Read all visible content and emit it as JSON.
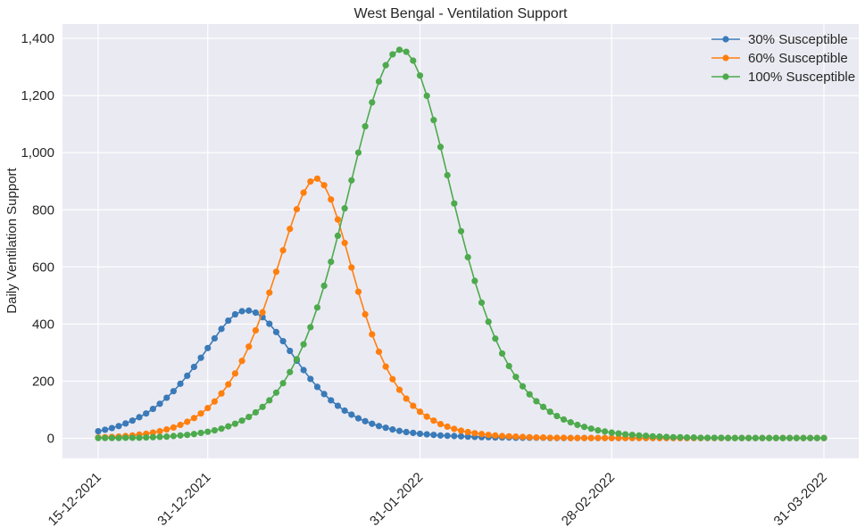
{
  "chart_data": {
    "type": "line",
    "title": "West Bengal - Ventilation Support",
    "xlabel": "",
    "ylabel": "Daily Ventilation Support",
    "x_start": "15-12-2021",
    "x_end": "31-03-2022",
    "x_step_days": 1,
    "xticks": [
      "15-12-2021",
      "31-12-2021",
      "31-01-2022",
      "28-02-2022",
      "31-03-2022"
    ],
    "yticks": [
      "0",
      "200",
      "400",
      "600",
      "800",
      "1,000",
      "1,200",
      "1,400"
    ],
    "ylim": [
      -70,
      1450
    ],
    "grid": true,
    "legend_position": "top-right",
    "series": [
      {
        "name": "30% Susceptible",
        "color": "#3a7ab8",
        "values": [
          25,
          30,
          36,
          43,
          52,
          62,
          74,
          87,
          103,
          121,
          142,
          165,
          191,
          219,
          250,
          282,
          316,
          350,
          383,
          412,
          434,
          445,
          447,
          440,
          424,
          401,
          372,
          340,
          306,
          272,
          239,
          208,
          180,
          155,
          133,
          114,
          97,
          83,
          70,
          60,
          51,
          43,
          37,
          31,
          26,
          22,
          19,
          16,
          14,
          12,
          10,
          9,
          8,
          7,
          6,
          5,
          4,
          4,
          3,
          3,
          3,
          2,
          2,
          2,
          2,
          2,
          1,
          1,
          1,
          1,
          1,
          1,
          1,
          1,
          1,
          1,
          1,
          1,
          1,
          1,
          1,
          1,
          1,
          1,
          1,
          1,
          1,
          1,
          1,
          1,
          1,
          1,
          1,
          1,
          1,
          1,
          1,
          1,
          1,
          1,
          1,
          1,
          1,
          1,
          1,
          1,
          1
        ]
      },
      {
        "name": "60% Susceptible",
        "color": "#ff7f0e",
        "values": [
          3,
          4,
          5,
          6,
          8,
          10,
          13,
          16,
          20,
          25,
          31,
          38,
          47,
          58,
          71,
          87,
          106,
          129,
          157,
          189,
          227,
          271,
          321,
          378,
          441,
          510,
          583,
          658,
          733,
          802,
          860,
          899,
          909,
          886,
          836,
          766,
          684,
          598,
          513,
          434,
          364,
          303,
          251,
          207,
          170,
          139,
          114,
          93,
          76,
          62,
          50,
          41,
          33,
          27,
          22,
          18,
          15,
          12,
          10,
          8,
          7,
          6,
          5,
          4,
          3,
          3,
          2,
          2,
          2,
          1,
          1,
          1,
          1,
          1,
          1,
          1,
          1,
          1,
          1,
          1,
          1,
          1,
          1,
          1,
          1,
          1,
          1,
          1,
          1,
          1,
          1,
          1,
          1,
          1,
          1,
          1,
          1,
          1,
          1,
          1,
          1,
          1,
          1,
          1,
          1,
          1,
          1
        ]
      },
      {
        "name": "100% Susceptible",
        "color": "#4daa4d",
        "values": [
          1,
          1,
          1,
          1,
          2,
          2,
          2,
          3,
          4,
          5,
          6,
          8,
          10,
          12,
          15,
          19,
          23,
          28,
          34,
          42,
          51,
          62,
          75,
          91,
          110,
          133,
          160,
          193,
          232,
          277,
          329,
          389,
          458,
          534,
          618,
          709,
          805,
          903,
          1000,
          1092,
          1176,
          1249,
          1306,
          1344,
          1360,
          1353,
          1322,
          1270,
          1199,
          1114,
          1020,
          921,
          822,
          725,
          634,
          551,
          475,
          408,
          349,
          297,
          253,
          215,
          182,
          154,
          130,
          110,
          93,
          78,
          66,
          56,
          47,
          40,
          34,
          28,
          24,
          20,
          17,
          14,
          12,
          10,
          9,
          7,
          6,
          5,
          4,
          4,
          3,
          3,
          2,
          2,
          2,
          2,
          1,
          1,
          1,
          1,
          1,
          1,
          1,
          1,
          1,
          1,
          1,
          1,
          1,
          1,
          1
        ]
      }
    ]
  }
}
